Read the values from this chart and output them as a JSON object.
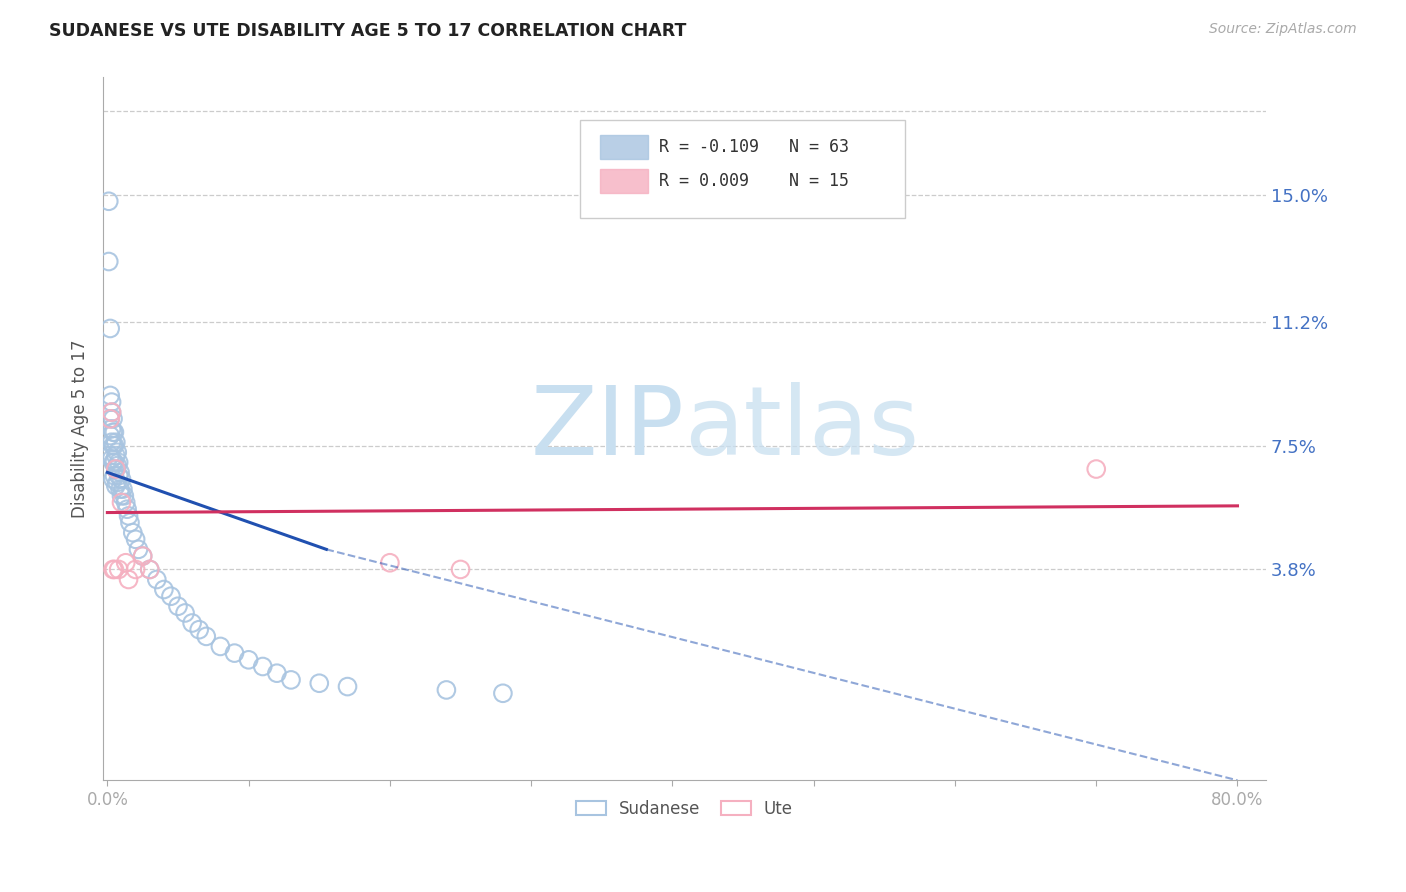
{
  "title": "SUDANESE VS UTE DISABILITY AGE 5 TO 17 CORRELATION CHART",
  "source": "Source: ZipAtlas.com",
  "ylabel": "Disability Age 5 to 17",
  "xlim": [
    -0.003,
    0.82
  ],
  "ylim": [
    -0.025,
    0.185
  ],
  "yticks_right": [
    0.15,
    0.112,
    0.075,
    0.038
  ],
  "yticklabels_right": [
    "15.0%",
    "11.2%",
    "7.5%",
    "3.8%"
  ],
  "xtick_positions": [
    0.0,
    0.1,
    0.2,
    0.3,
    0.4,
    0.5,
    0.6,
    0.7,
    0.8
  ],
  "legend_r_sudanese": "R = -0.109",
  "legend_n_sudanese": "N = 63",
  "legend_r_ute": "R = 0.009",
  "legend_n_ute": "N = 15",
  "sudanese_color": "#a8c4e0",
  "ute_color": "#f5b0c0",
  "trend_sudanese_color": "#2050b0",
  "trend_ute_color": "#d03060",
  "watermark_zip_color": "#c8dff0",
  "watermark_atlas_color": "#c8dff0",
  "background_color": "#ffffff",
  "grid_color": "#cccccc",
  "sudanese_x": [
    0.001,
    0.001,
    0.002,
    0.002,
    0.002,
    0.002,
    0.002,
    0.003,
    0.003,
    0.003,
    0.003,
    0.003,
    0.004,
    0.004,
    0.004,
    0.004,
    0.004,
    0.005,
    0.005,
    0.005,
    0.005,
    0.006,
    0.006,
    0.006,
    0.006,
    0.007,
    0.007,
    0.007,
    0.008,
    0.008,
    0.009,
    0.009,
    0.01,
    0.01,
    0.011,
    0.012,
    0.013,
    0.014,
    0.015,
    0.016,
    0.018,
    0.02,
    0.022,
    0.025,
    0.03,
    0.035,
    0.04,
    0.045,
    0.05,
    0.055,
    0.06,
    0.065,
    0.07,
    0.08,
    0.09,
    0.1,
    0.11,
    0.12,
    0.13,
    0.15,
    0.17,
    0.24,
    0.28
  ],
  "sudanese_y": [
    0.148,
    0.13,
    0.11,
    0.09,
    0.083,
    0.078,
    0.072,
    0.088,
    0.085,
    0.08,
    0.076,
    0.071,
    0.083,
    0.079,
    0.075,
    0.07,
    0.065,
    0.079,
    0.075,
    0.07,
    0.066,
    0.076,
    0.072,
    0.068,
    0.063,
    0.073,
    0.069,
    0.064,
    0.07,
    0.066,
    0.067,
    0.062,
    0.065,
    0.06,
    0.062,
    0.06,
    0.058,
    0.056,
    0.054,
    0.052,
    0.049,
    0.047,
    0.044,
    0.042,
    0.038,
    0.035,
    0.032,
    0.03,
    0.027,
    0.025,
    0.022,
    0.02,
    0.018,
    0.015,
    0.013,
    0.011,
    0.009,
    0.007,
    0.005,
    0.004,
    0.003,
    0.002,
    0.001
  ],
  "ute_x": [
    0.002,
    0.003,
    0.004,
    0.005,
    0.006,
    0.008,
    0.01,
    0.013,
    0.015,
    0.02,
    0.025,
    0.03,
    0.2,
    0.25,
    0.7
  ],
  "ute_y": [
    0.083,
    0.085,
    0.038,
    0.038,
    0.068,
    0.038,
    0.058,
    0.04,
    0.035,
    0.038,
    0.042,
    0.038,
    0.04,
    0.038,
    0.068
  ],
  "trend_sudanese_x0": 0.0,
  "trend_sudanese_y0": 0.067,
  "trend_sudanese_x1": 0.155,
  "trend_sudanese_y1": 0.044,
  "trend_sudanese_dash_x0": 0.155,
  "trend_sudanese_dash_y0": 0.044,
  "trend_sudanese_dash_x1": 0.8,
  "trend_sudanese_dash_y1": -0.025,
  "trend_ute_x0": 0.0,
  "trend_ute_y0": 0.055,
  "trend_ute_x1": 0.8,
  "trend_ute_y1": 0.057
}
